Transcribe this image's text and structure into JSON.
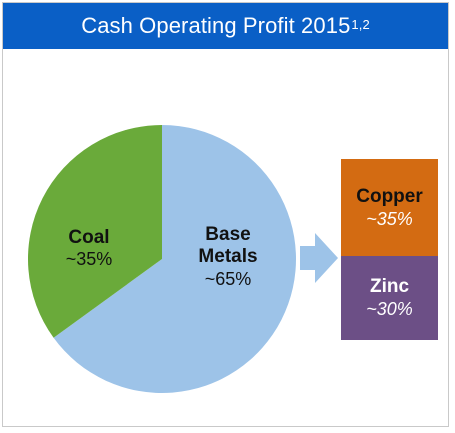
{
  "title": {
    "text": "Cash Operating Profit 2015",
    "superscript": "1,2"
  },
  "colors": {
    "header": "#0a5fc6",
    "coal": "#6aaa3a",
    "base_metals": "#9dc3e8",
    "copper": "#d36b12",
    "zinc": "#6c4f86",
    "arrow": "#9dc3e8"
  },
  "chart_data": {
    "type": "pie",
    "title": "Cash Operating Profit 2015",
    "slices": [
      {
        "name": "Coal",
        "value": 35,
        "label": "~35%"
      },
      {
        "name": "Base Metals",
        "name_lines": [
          "Base",
          "Metals"
        ],
        "value": 65,
        "label": "~65%"
      }
    ],
    "breakdown": {
      "of": "Base Metals",
      "items": [
        {
          "name": "Copper",
          "label": "~35%"
        },
        {
          "name": "Zinc",
          "label": "~30%"
        }
      ]
    }
  }
}
